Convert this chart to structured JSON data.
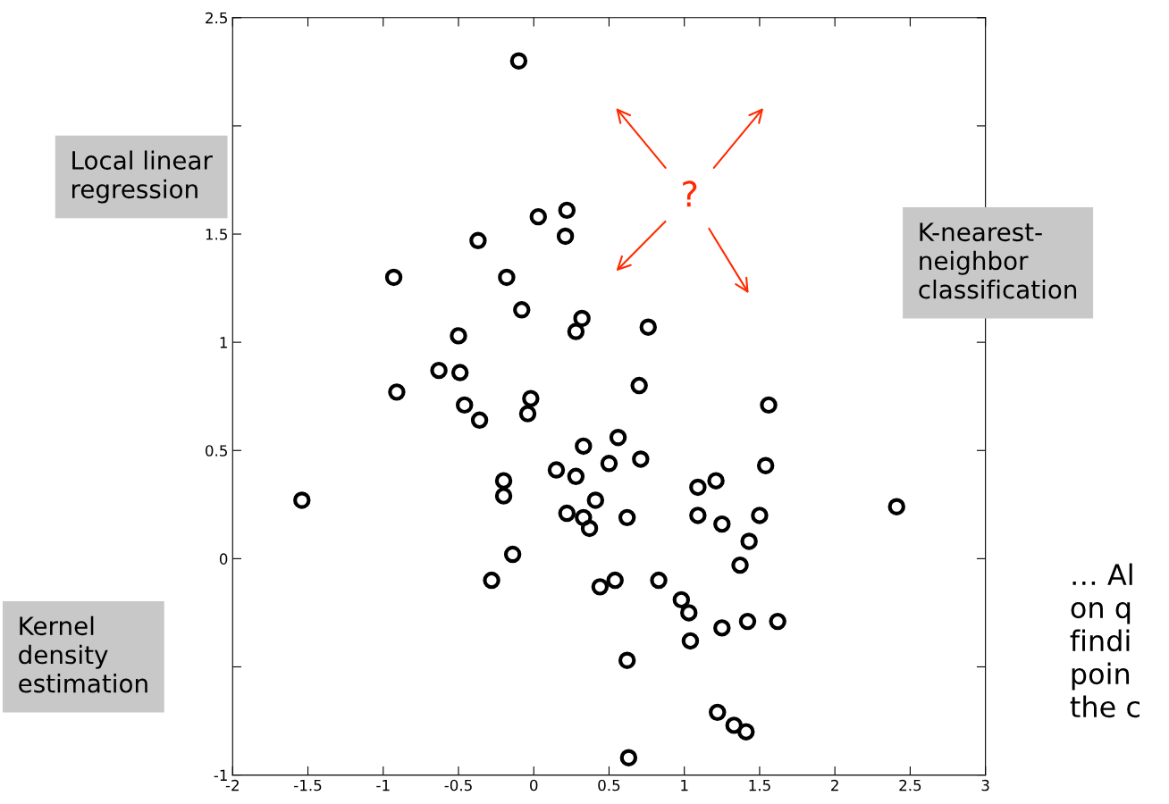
{
  "chart_data": {
    "type": "scatter",
    "x": [
      -0.1,
      0.03,
      0.22,
      -0.37,
      0.21,
      -0.93,
      -0.18,
      -0.08,
      0.32,
      0.28,
      0.76,
      -0.5,
      -0.63,
      -0.49,
      -0.91,
      -0.46,
      -0.36,
      -0.02,
      -0.04,
      0.7,
      1.56,
      0.33,
      0.56,
      0.5,
      0.71,
      0.15,
      0.28,
      1.54,
      -0.2,
      -0.2,
      -1.54,
      0.41,
      1.09,
      1.21,
      2.41,
      0.22,
      0.33,
      0.37,
      0.62,
      1.09,
      1.25,
      1.5,
      1.43,
      -0.14,
      1.37,
      -0.28,
      0.44,
      0.54,
      0.83,
      0.98,
      1.03,
      1.42,
      1.25,
      1.62,
      1.04,
      0.62,
      1.22,
      1.33,
      1.41,
      0.63
    ],
    "values": [
      2.3,
      1.58,
      1.61,
      1.47,
      1.49,
      1.3,
      1.3,
      1.15,
      1.11,
      1.05,
      1.07,
      1.03,
      0.87,
      0.86,
      0.77,
      0.71,
      0.64,
      0.74,
      0.67,
      0.8,
      0.71,
      0.52,
      0.56,
      0.44,
      0.46,
      0.41,
      0.38,
      0.43,
      0.36,
      0.29,
      0.27,
      0.27,
      0.33,
      0.36,
      0.24,
      0.21,
      0.19,
      0.14,
      0.19,
      0.2,
      0.16,
      0.2,
      0.08,
      0.02,
      -0.03,
      -0.1,
      -0.13,
      -0.1,
      -0.1,
      -0.19,
      -0.25,
      -0.29,
      -0.32,
      -0.29,
      -0.38,
      -0.47,
      -0.71,
      -0.77,
      -0.8,
      -0.92
    ],
    "color": "#000000",
    "marker": "circle",
    "grid": false,
    "xlim": [
      -2,
      3
    ],
    "xticks": [
      -2,
      -1.5,
      -1,
      -0.5,
      0,
      0.5,
      1,
      1.5,
      2,
      2.5,
      3
    ],
    "ylim": [
      -1,
      2.5
    ],
    "yticks": [
      -1,
      {
        "value": -0.5,
        "label": null
      },
      0,
      0.5,
      1,
      1.5,
      {
        "value": 2,
        "label": null
      },
      2.5
    ],
    "annotations": [
      "Local linear\nregression",
      "K-nearest-\nneighbor\nclassification",
      "Kernel\ndensity\nestimation",
      "?",
      "… Al\non q\nfindi\npoin\nthe c"
    ]
  }
}
